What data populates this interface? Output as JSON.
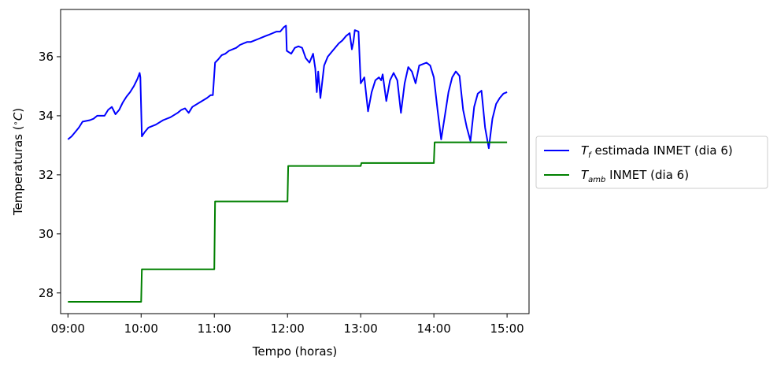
{
  "chart_data": {
    "type": "line",
    "title": "",
    "xlabel": "Tempo (horas)",
    "ylabel": "Temperaturas ($^\\circ C$)",
    "ylabel_parts": {
      "prefix": "Temperaturas (",
      "degree": "∘",
      "unit": "C",
      "suffix": ")"
    },
    "x_unit": "hours",
    "xlim": [
      8.9,
      15.3
    ],
    "ylim": [
      27.3,
      37.6
    ],
    "x_ticks": [
      9,
      10,
      11,
      12,
      13,
      14,
      15
    ],
    "x_tick_labels": [
      "09:00",
      "10:00",
      "11:00",
      "12:00",
      "13:00",
      "14:00",
      "15:00"
    ],
    "y_ticks": [
      28,
      30,
      32,
      34,
      36
    ],
    "y_tick_labels": [
      "28",
      "30",
      "32",
      "34",
      "36"
    ],
    "grid": false,
    "legend_placement": "center-right outside",
    "series": [
      {
        "name": "$T_f$ estimada INMET (dia 6)",
        "legend": {
          "main": "T",
          "sub": "f",
          "rest": " estimada INMET (dia 6)"
        },
        "color": "#0000ff",
        "points": [
          [
            9.0,
            33.2
          ],
          [
            9.05,
            33.3
          ],
          [
            9.1,
            33.45
          ],
          [
            9.15,
            33.6
          ],
          [
            9.2,
            33.8
          ],
          [
            9.3,
            33.85
          ],
          [
            9.35,
            33.9
          ],
          [
            9.4,
            34.0
          ],
          [
            9.5,
            34.0
          ],
          [
            9.55,
            34.2
          ],
          [
            9.6,
            34.3
          ],
          [
            9.65,
            34.05
          ],
          [
            9.7,
            34.2
          ],
          [
            9.75,
            34.45
          ],
          [
            9.8,
            34.65
          ],
          [
            9.85,
            34.8
          ],
          [
            9.9,
            35.0
          ],
          [
            9.95,
            35.25
          ],
          [
            9.98,
            35.45
          ],
          [
            9.99,
            35.3
          ],
          [
            10.01,
            33.3
          ],
          [
            10.05,
            33.45
          ],
          [
            10.1,
            33.6
          ],
          [
            10.2,
            33.7
          ],
          [
            10.3,
            33.85
          ],
          [
            10.4,
            33.95
          ],
          [
            10.5,
            34.1
          ],
          [
            10.55,
            34.2
          ],
          [
            10.6,
            34.25
          ],
          [
            10.65,
            34.1
          ],
          [
            10.7,
            34.3
          ],
          [
            10.8,
            34.45
          ],
          [
            10.9,
            34.6
          ],
          [
            10.95,
            34.7
          ],
          [
            10.98,
            34.7
          ],
          [
            11.01,
            35.8
          ],
          [
            11.05,
            35.9
          ],
          [
            11.1,
            36.05
          ],
          [
            11.15,
            36.1
          ],
          [
            11.2,
            36.2
          ],
          [
            11.25,
            36.25
          ],
          [
            11.3,
            36.3
          ],
          [
            11.35,
            36.4
          ],
          [
            11.4,
            36.45
          ],
          [
            11.45,
            36.5
          ],
          [
            11.5,
            36.5
          ],
          [
            11.55,
            36.55
          ],
          [
            11.6,
            36.6
          ],
          [
            11.65,
            36.65
          ],
          [
            11.7,
            36.7
          ],
          [
            11.75,
            36.75
          ],
          [
            11.8,
            36.8
          ],
          [
            11.85,
            36.85
          ],
          [
            11.9,
            36.85
          ],
          [
            11.95,
            37.0
          ],
          [
            11.98,
            37.05
          ],
          [
            11.99,
            36.2
          ],
          [
            12.05,
            36.1
          ],
          [
            12.1,
            36.3
          ],
          [
            12.15,
            36.35
          ],
          [
            12.2,
            36.3
          ],
          [
            12.25,
            35.95
          ],
          [
            12.3,
            35.8
          ],
          [
            12.35,
            36.1
          ],
          [
            12.38,
            35.6
          ],
          [
            12.4,
            34.8
          ],
          [
            12.42,
            35.5
          ],
          [
            12.45,
            34.6
          ],
          [
            12.5,
            35.7
          ],
          [
            12.55,
            36.0
          ],
          [
            12.6,
            36.15
          ],
          [
            12.65,
            36.3
          ],
          [
            12.7,
            36.45
          ],
          [
            12.75,
            36.55
          ],
          [
            12.8,
            36.7
          ],
          [
            12.85,
            36.8
          ],
          [
            12.88,
            36.25
          ],
          [
            12.9,
            36.5
          ],
          [
            12.92,
            36.9
          ],
          [
            12.97,
            36.85
          ],
          [
            13.0,
            35.1
          ],
          [
            13.05,
            35.3
          ],
          [
            13.1,
            34.15
          ],
          [
            13.15,
            34.8
          ],
          [
            13.2,
            35.2
          ],
          [
            13.25,
            35.3
          ],
          [
            13.28,
            35.2
          ],
          [
            13.3,
            35.4
          ],
          [
            13.35,
            34.5
          ],
          [
            13.4,
            35.2
          ],
          [
            13.45,
            35.45
          ],
          [
            13.5,
            35.2
          ],
          [
            13.55,
            34.1
          ],
          [
            13.6,
            35.1
          ],
          [
            13.65,
            35.65
          ],
          [
            13.7,
            35.5
          ],
          [
            13.75,
            35.1
          ],
          [
            13.8,
            35.7
          ],
          [
            13.85,
            35.75
          ],
          [
            13.9,
            35.8
          ],
          [
            13.95,
            35.7
          ],
          [
            14.0,
            35.3
          ],
          [
            14.05,
            34.2
          ],
          [
            14.1,
            33.2
          ],
          [
            14.15,
            34.0
          ],
          [
            14.2,
            34.8
          ],
          [
            14.25,
            35.3
          ],
          [
            14.3,
            35.5
          ],
          [
            14.35,
            35.35
          ],
          [
            14.4,
            34.2
          ],
          [
            14.45,
            33.6
          ],
          [
            14.5,
            33.15
          ],
          [
            14.55,
            34.3
          ],
          [
            14.6,
            34.75
          ],
          [
            14.65,
            34.85
          ],
          [
            14.7,
            33.6
          ],
          [
            14.75,
            32.9
          ],
          [
            14.8,
            33.9
          ],
          [
            14.85,
            34.4
          ],
          [
            14.9,
            34.6
          ],
          [
            14.95,
            34.75
          ],
          [
            15.0,
            34.8
          ]
        ]
      },
      {
        "name": "$T_{amb}$ INMET (dia 6)",
        "legend": {
          "main": "T",
          "sub": "amb",
          "rest": " INMET (dia 6)"
        },
        "color": "#008000",
        "points": [
          [
            9.0,
            27.7
          ],
          [
            10.0,
            27.7
          ],
          [
            10.01,
            28.8
          ],
          [
            11.0,
            28.8
          ],
          [
            11.01,
            31.1
          ],
          [
            12.0,
            31.1
          ],
          [
            12.01,
            32.3
          ],
          [
            13.0,
            32.3
          ],
          [
            13.01,
            32.4
          ],
          [
            14.0,
            32.4
          ],
          [
            14.01,
            33.1
          ],
          [
            15.0,
            33.1
          ]
        ]
      }
    ]
  }
}
